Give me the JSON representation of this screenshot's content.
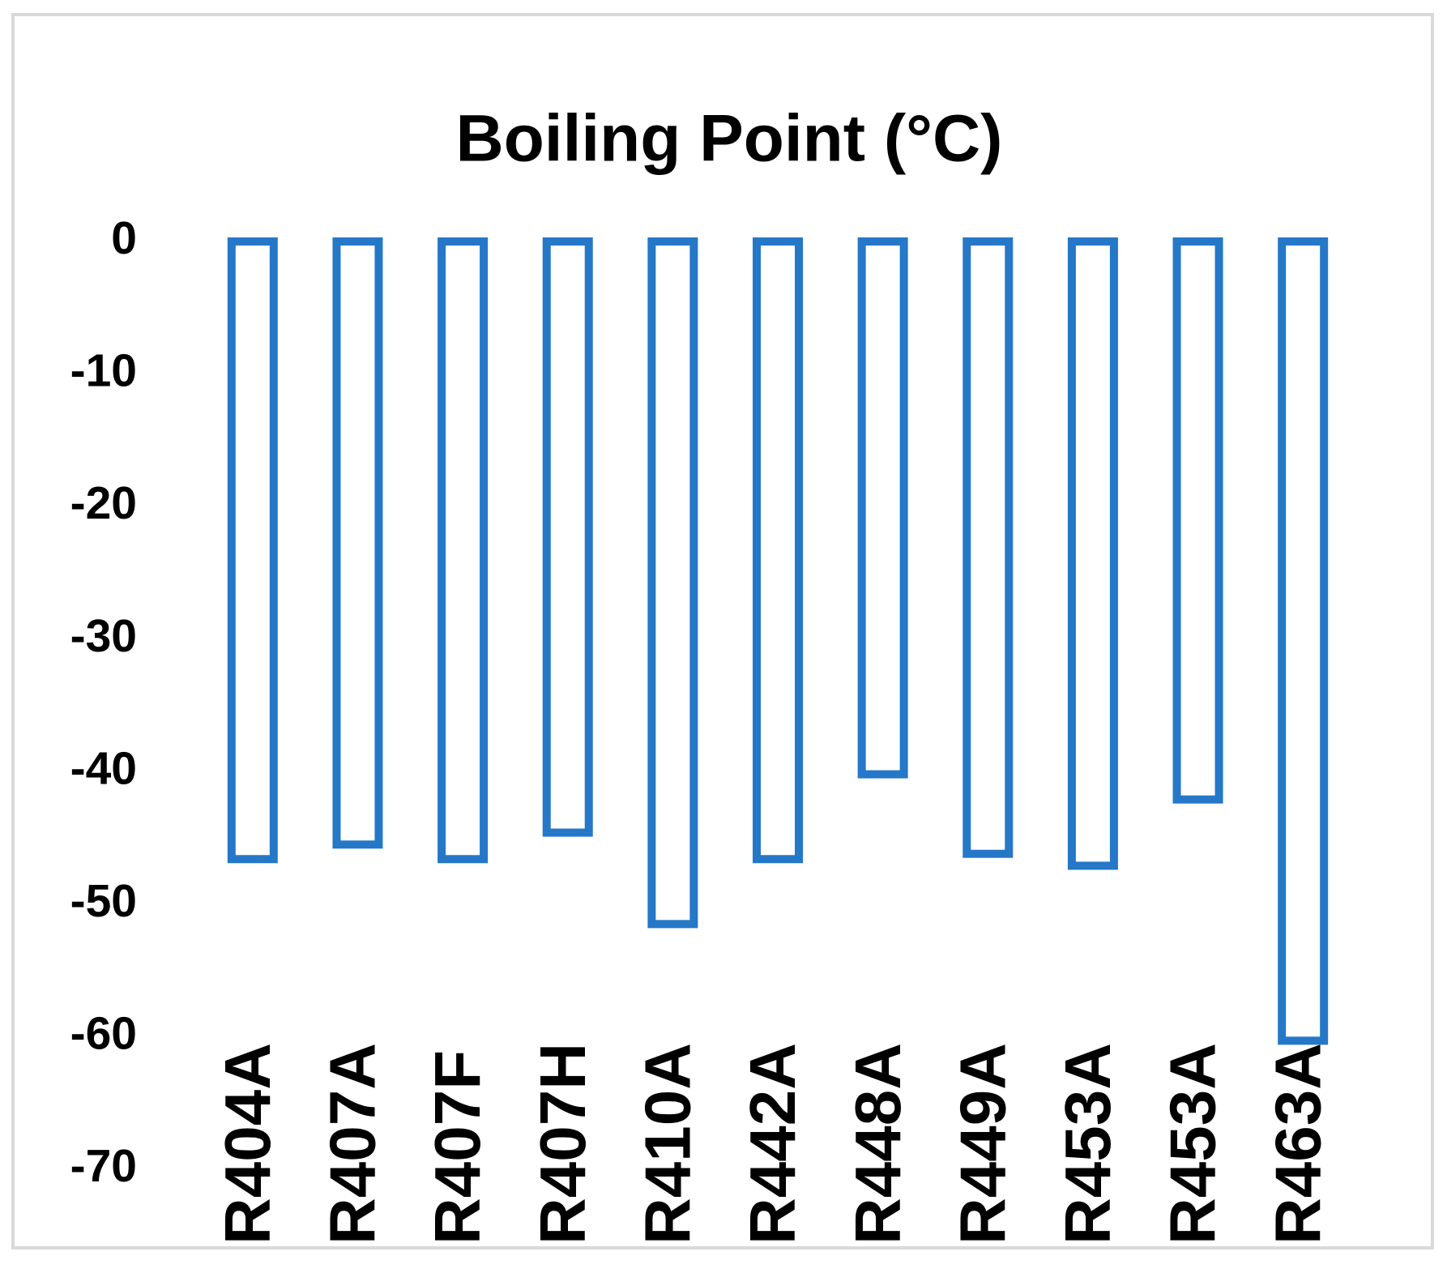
{
  "chart_data": {
    "type": "bar",
    "title": "Boiling Point (°C)",
    "categories": [
      "R404A",
      "R407A",
      "R407F",
      "R407H",
      "R410A",
      "R442A",
      "R448A",
      "R449A",
      "R453A",
      "R453A",
      "R463A"
    ],
    "values": [
      -46.6,
      -45.5,
      -46.6,
      -44.6,
      -51.5,
      -46.6,
      -40.2,
      -46.2,
      -47.1,
      -42.1,
      -60.3
    ],
    "color": "#2577c8",
    "ylim": [
      -70,
      0
    ],
    "yticks": [
      0,
      -10,
      -20,
      -30,
      -40,
      -50,
      -60,
      -70
    ],
    "grid": false
  }
}
